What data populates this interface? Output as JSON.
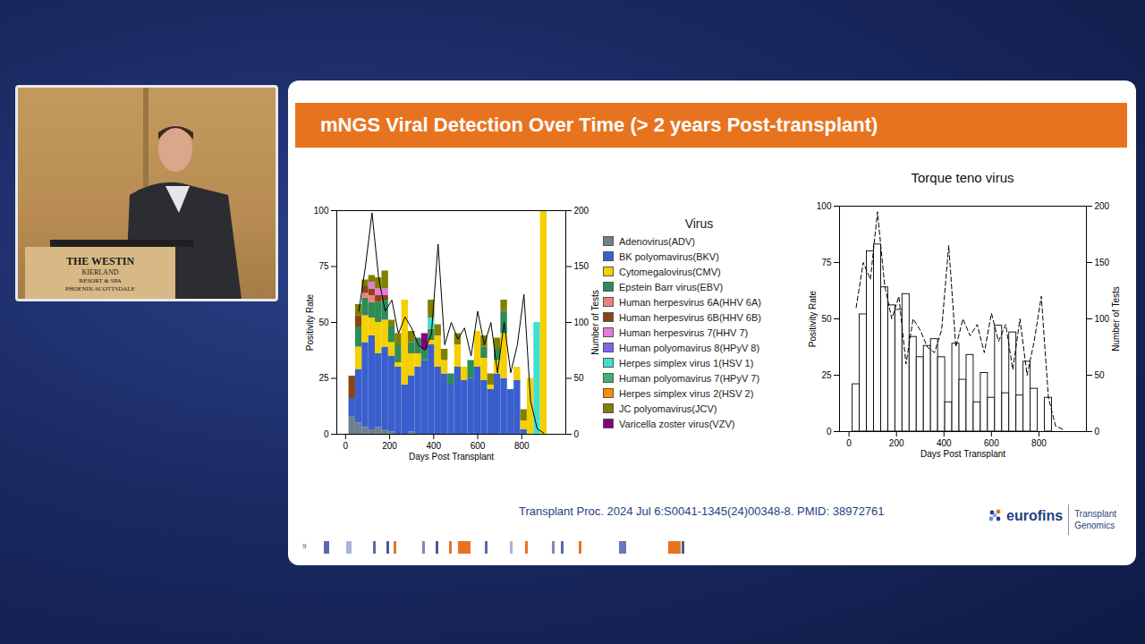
{
  "title": "mNGS Viral Detection Over Time (> 2 years Post-transplant)",
  "citation": "Transplant Proc. 2024 Jul 6:S0041-1345(24)00348-8. PMID: 38972761",
  "logo": {
    "name": "eurofins",
    "lines": [
      "Transplant",
      "Genomics"
    ]
  },
  "slide_number": 9,
  "podium_sign": [
    "THE WESTIN",
    "KIERLAND",
    "RESORT & SPA",
    "PHOENIX-SCOTTSDALE"
  ],
  "chart_data": [
    {
      "type": "bar",
      "stacked": true,
      "xlabel": "Days Post Transplant",
      "ylabel": "Positivity Rate",
      "y2label": "Number of Tests",
      "legend": "right",
      "legend_title": "Virus",
      "xlim": [
        -40,
        1000
      ],
      "xticks": [
        0,
        200,
        400,
        600,
        800
      ],
      "ylim": [
        0,
        100
      ],
      "yticks": [
        0,
        25,
        50,
        75,
        100
      ],
      "y2lim": [
        0,
        200
      ],
      "y2ticks": [
        0,
        50,
        100,
        150,
        200
      ],
      "bins": [
        15,
        45,
        75,
        105,
        135,
        165,
        195,
        225,
        255,
        285,
        315,
        345,
        375,
        405,
        435,
        465,
        495,
        525,
        555,
        585,
        615,
        645,
        675,
        705,
        735,
        765,
        795,
        825,
        855,
        885,
        915
      ],
      "x": [
        30,
        60,
        90,
        120,
        150,
        180,
        210,
        240,
        270,
        300,
        330,
        360,
        390,
        420,
        450,
        480,
        510,
        540,
        570,
        600,
        630,
        660,
        690,
        720,
        750,
        780,
        810,
        840,
        870,
        900
      ],
      "series": [
        {
          "name": "Adenovirus(ADV)",
          "color": "#6f7f8f",
          "values": [
            8,
            5,
            3,
            2,
            3,
            2,
            1,
            0,
            0,
            1,
            0,
            0,
            0,
            0,
            0,
            0,
            0,
            0,
            0,
            0,
            0,
            0,
            0,
            0,
            0,
            0,
            0,
            0,
            0,
            0
          ]
        },
        {
          "name": "BK polyomavirus(BKV)",
          "color": "#3a5fcd",
          "values": [
            8,
            24,
            38,
            42,
            33,
            37,
            34,
            30,
            22,
            25,
            30,
            33,
            40,
            30,
            27,
            22,
            30,
            24,
            25,
            30,
            24,
            20,
            27,
            25,
            20,
            24,
            2,
            0,
            0,
            0
          ]
        },
        {
          "name": "Cytomegalovirus(CMV)",
          "color": "#f5d000",
          "values": [
            0,
            10,
            12,
            8,
            14,
            12,
            6,
            2,
            38,
            10,
            6,
            0,
            2,
            14,
            6,
            0,
            10,
            6,
            0,
            16,
            10,
            2,
            6,
            20,
            0,
            6,
            4,
            25,
            0,
            100
          ]
        },
        {
          "name": "Epstein Barr virus(EBV)",
          "color": "#2e8b57",
          "values": [
            0,
            9,
            8,
            7,
            9,
            9,
            7,
            8,
            0,
            5,
            7,
            5,
            5,
            0,
            0,
            5,
            0,
            0,
            8,
            0,
            5,
            0,
            5,
            10,
            0,
            0,
            0,
            0,
            0,
            0
          ]
        },
        {
          "name": "Human herpesvirus 6A(HHV 6A)",
          "color": "#f08080",
          "values": [
            0,
            0,
            2,
            3,
            0,
            0,
            0,
            0,
            0,
            0,
            0,
            0,
            0,
            0,
            0,
            0,
            0,
            0,
            0,
            0,
            0,
            0,
            0,
            0,
            0,
            0,
            0,
            0,
            0,
            0
          ]
        },
        {
          "name": "Human herpesvirus 6B(HHV 6B)",
          "color": "#8b4513",
          "values": [
            10,
            5,
            3,
            3,
            3,
            2,
            0,
            0,
            0,
            0,
            0,
            0,
            0,
            0,
            0,
            0,
            0,
            0,
            0,
            0,
            0,
            0,
            0,
            0,
            0,
            0,
            0,
            0,
            0,
            0
          ]
        },
        {
          "name": "Human herpesvirus 7(HHV 7)",
          "color": "#e87ad8",
          "values": [
            0,
            0,
            0,
            3,
            3,
            3,
            0,
            0,
            0,
            0,
            0,
            0,
            0,
            0,
            0,
            0,
            0,
            0,
            0,
            0,
            0,
            0,
            0,
            0,
            0,
            0,
            0,
            0,
            0,
            0
          ]
        },
        {
          "name": "Human polyomavirus 8(HPyV 8)",
          "color": "#7b68ee",
          "values": [
            0,
            0,
            0,
            0,
            0,
            0,
            0,
            0,
            0,
            0,
            0,
            0,
            0,
            0,
            0,
            0,
            0,
            0,
            0,
            0,
            0,
            0,
            0,
            0,
            0,
            0,
            0,
            0,
            0,
            0
          ]
        },
        {
          "name": "Herpes simplex virus 1(HSV 1)",
          "color": "#40e0d0",
          "values": [
            0,
            0,
            0,
            0,
            0,
            0,
            0,
            0,
            0,
            0,
            0,
            0,
            5,
            0,
            0,
            0,
            0,
            0,
            0,
            0,
            0,
            0,
            0,
            0,
            0,
            0,
            0,
            0,
            50,
            0
          ]
        },
        {
          "name": "Human polyomavirus 7(HPyV 7)",
          "color": "#3cb371",
          "values": [
            0,
            0,
            0,
            0,
            0,
            0,
            0,
            0,
            0,
            0,
            0,
            0,
            0,
            0,
            0,
            0,
            0,
            0,
            0,
            0,
            0,
            0,
            0,
            0,
            0,
            0,
            0,
            0,
            0,
            0
          ]
        },
        {
          "name": "Herpes simplex virus 2(HSV 2)",
          "color": "#ff8c00",
          "values": [
            0,
            0,
            0,
            0,
            0,
            0,
            0,
            0,
            0,
            0,
            0,
            0,
            0,
            0,
            0,
            0,
            0,
            0,
            0,
            0,
            0,
            0,
            0,
            0,
            0,
            0,
            0,
            0,
            0,
            0
          ]
        },
        {
          "name": "JC polyomavirus(JCV)",
          "color": "#808000",
          "values": [
            0,
            5,
            3,
            3,
            5,
            8,
            3,
            5,
            0,
            5,
            0,
            0,
            8,
            5,
            5,
            0,
            5,
            0,
            0,
            0,
            5,
            5,
            5,
            5,
            0,
            0,
            5,
            0,
            0,
            0
          ]
        },
        {
          "name": "Varicella zoster virus(VZV)",
          "color": "#800080",
          "values": [
            0,
            0,
            0,
            0,
            0,
            0,
            0,
            0,
            0,
            0,
            0,
            7,
            0,
            0,
            0,
            0,
            0,
            0,
            0,
            0,
            0,
            0,
            0,
            0,
            0,
            0,
            0,
            0,
            0,
            0
          ]
        },
        {
          "type": "line",
          "axis": "y2",
          "color": "#000000",
          "line_style": "solid",
          "values": [
            null,
            110,
            150,
            198,
            140,
            110,
            120,
            90,
            105,
            95,
            80,
            75,
            90,
            170,
            80,
            100,
            85,
            95,
            70,
            110,
            80,
            100,
            55,
            100,
            55,
            80,
            125,
            30,
            5,
            1
          ]
        }
      ]
    },
    {
      "type": "bar",
      "title": "Torque teno virus",
      "xlabel": "Days Post Transplant",
      "ylabel": "Positivity Rate",
      "y2label": "Number of Tests",
      "xlim": [
        -40,
        1000
      ],
      "xticks": [
        0,
        200,
        400,
        600,
        800
      ],
      "ylim": [
        0,
        100
      ],
      "yticks": [
        0,
        25,
        50,
        75,
        100
      ],
      "y2lim": [
        0,
        200
      ],
      "y2ticks": [
        0,
        50,
        100,
        150,
        200
      ],
      "bins": [
        15,
        45,
        75,
        105,
        135,
        165,
        195,
        225,
        255,
        285,
        315,
        345,
        375,
        405,
        435,
        465,
        495,
        525,
        555,
        585,
        615,
        645,
        675,
        705,
        735,
        765,
        795,
        825,
        855,
        885,
        915
      ],
      "x": [
        30,
        60,
        90,
        120,
        150,
        180,
        210,
        240,
        270,
        300,
        330,
        360,
        390,
        420,
        450,
        480,
        510,
        540,
        570,
        600,
        630,
        660,
        690,
        720,
        750,
        780,
        810,
        840,
        870,
        900
      ],
      "series": [
        {
          "type": "bar",
          "color": "#ffffff",
          "values": [
            21,
            52,
            80,
            83,
            64,
            56,
            54,
            61,
            42,
            33,
            38,
            41,
            33,
            13,
            39,
            23,
            34,
            13,
            26,
            15,
            47,
            17,
            44,
            16,
            31,
            19,
            0,
            15,
            0,
            0
          ]
        },
        {
          "type": "line",
          "axis": "y2",
          "color": "#000000",
          "line_style": "dashed",
          "values": [
            110,
            150,
            135,
            195,
            130,
            100,
            120,
            60,
            100,
            90,
            75,
            70,
            90,
            165,
            75,
            100,
            85,
            95,
            70,
            105,
            80,
            95,
            55,
            100,
            50,
            80,
            120,
            30,
            5,
            2
          ]
        }
      ]
    }
  ]
}
